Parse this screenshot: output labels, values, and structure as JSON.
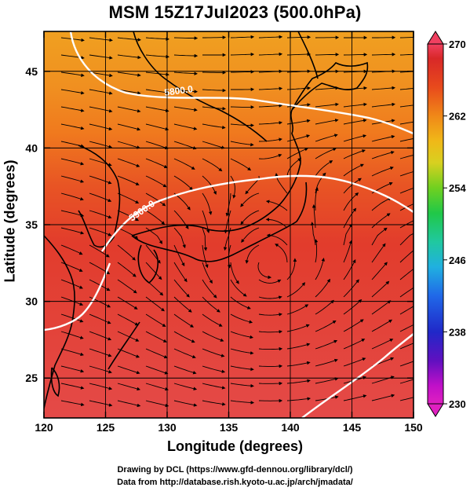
{
  "title": "MSM 15Z17Jul2023 (500.0hPa)",
  "axes": {
    "xlabel": "Longitude (degrees)",
    "ylabel": "Latitude  (degrees)",
    "x_ticks": [
      "120",
      "125",
      "130",
      "135",
      "140",
      "145",
      "150"
    ],
    "y_ticks": [
      "25",
      "30",
      "35",
      "40",
      "45"
    ],
    "xlim": [
      120,
      150
    ],
    "ylim": [
      22.4,
      47.6
    ]
  },
  "colorbar": {
    "ticks": [
      "270",
      "262",
      "254",
      "246",
      "238",
      "230"
    ],
    "range": [
      230,
      270
    ],
    "colors": [
      "#f04070",
      "#e03050",
      "#d02828",
      "#e04020",
      "#f06818",
      "#f09018",
      "#f0b818",
      "#e8d020",
      "#b8d820",
      "#60d020",
      "#20c840",
      "#20c898",
      "#20b8d8",
      "#2070e8",
      "#2030d0",
      "#3010c0",
      "#9010c8",
      "#d010c8",
      "#e020c0"
    ]
  },
  "contours": {
    "label_north": "5800.0",
    "label_south": "5900.0"
  },
  "credits": {
    "line1": "Drawing by DCL (https://www.gfd-dennou.org/library/dcl/)",
    "line2": "Data from http://database.rish.kyoto-u.ac.jp/arch/jmadata/"
  }
}
